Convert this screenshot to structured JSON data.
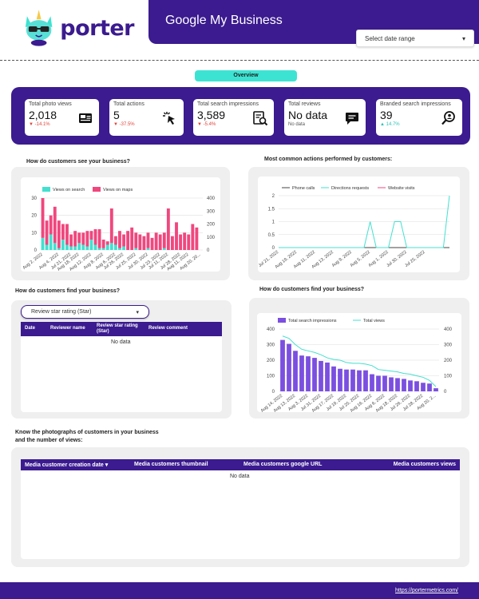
{
  "header": {
    "brand": "porter",
    "title": "Google My Business",
    "date_range_placeholder": "Select date range"
  },
  "overview_label": "Overview",
  "kpis": [
    {
      "label": "Total photo views",
      "value": "2,018",
      "delta": "-14.1%",
      "direction": "down",
      "icon": "photo-icon"
    },
    {
      "label": "Total actions",
      "value": "5",
      "delta": "-37.5%",
      "direction": "down",
      "icon": "cursor-click-icon"
    },
    {
      "label": "Total search impressions",
      "value": "3,589",
      "delta": "-5.4%",
      "direction": "down",
      "icon": "search-document-icon"
    },
    {
      "label": "Total reviews",
      "value": "No data",
      "delta": "No data",
      "direction": "none",
      "icon": "chat-bubble-icon"
    },
    {
      "label": "Branded search impressions",
      "value": "39",
      "delta": "14.7%",
      "direction": "up",
      "icon": "search-person-icon"
    }
  ],
  "colors": {
    "brand": "#3b1b8f",
    "accent": "#3de3d2",
    "negative": "#e0453a",
    "positive": "#2ec4b6",
    "views_on_search": "#43e0cf",
    "views_on_maps": "#f0477e",
    "phone_calls": "#444444",
    "directions_requests": "#43e0cf",
    "website_visits": "#f0477e",
    "impressions": "#7b4fe0"
  },
  "sections": {
    "see_title": "How do customers see your business?",
    "actions_title": "Most common actions performed by customers:",
    "find_title_left": "How do customers find your business?",
    "find_title_right": "How do customers find your business?",
    "photos_title_line1": "Know the photographs of customers in your business",
    "photos_title_line2": "and the number of views:"
  },
  "reviews": {
    "filter_label": "Review star rating (Star)",
    "columns": [
      "Date",
      "Reviewer name",
      "Review star rating (Star)",
      "Review comment"
    ],
    "empty": "No data"
  },
  "media": {
    "columns": [
      "Media customer creation date",
      "Media customers thumbnail",
      "Media customers google URL",
      "Media customers views"
    ],
    "empty": "No data"
  },
  "footer": {
    "link": "https://portermetrics.com/"
  },
  "chart_data": [
    {
      "type": "bar",
      "stacked": true,
      "legend_position": "top-left",
      "categories": [
        "Aug 2, 2022",
        "",
        "",
        "",
        "Aug 4, 2022",
        "",
        "",
        "Jul 21, 2022",
        "",
        "Aug 18, 2022",
        "",
        "",
        "Aug 12, 2022",
        "",
        "",
        "Aug 8, 2022",
        "",
        "",
        "Aug 6, 2022",
        "",
        "Jul 26, 2022",
        "",
        "",
        "Jul 25, 2022",
        "",
        "",
        "Jul 30, 2022",
        "",
        "",
        "Jul 23, 2022",
        "",
        "Jul 11, 2022",
        "",
        "",
        "Jul 28, 2022",
        "",
        "Aug 11, 2022",
        "",
        "",
        "Aug 20, 20..."
      ],
      "series": [
        {
          "name": "Views on search",
          "values": [
            7,
            3,
            9,
            4,
            1,
            6,
            3,
            2,
            2,
            4,
            3,
            2,
            6,
            3,
            1,
            1,
            3,
            4,
            3,
            1,
            2,
            0,
            0,
            1,
            0,
            0,
            1,
            0,
            0,
            0,
            1,
            0,
            0,
            0,
            0,
            0,
            0,
            0,
            0,
            0
          ]
        },
        {
          "name": "Views on maps",
          "values": [
            23,
            14,
            11,
            21,
            16,
            9,
            12,
            7,
            9,
            6,
            7,
            9,
            5,
            9,
            11,
            5,
            2,
            20,
            5,
            10,
            7,
            11,
            13,
            9,
            9,
            8,
            9,
            7,
            10,
            9,
            9,
            24,
            8,
            16,
            9,
            10,
            9,
            15,
            13,
            0
          ]
        }
      ],
      "ylim": [
        0,
        30
      ],
      "y2lim": [
        0,
        400
      ],
      "yticks": [
        0,
        10,
        20,
        30
      ],
      "y2ticks": [
        0,
        100,
        200,
        300,
        400
      ]
    },
    {
      "type": "line",
      "legend_position": "top",
      "categories": [
        "Jul 21, 2022",
        "",
        "",
        "Aug 19, 2022",
        "",
        "",
        "Aug 11, 2022",
        "",
        "",
        "Aug 13, 2022",
        "",
        "",
        "Aug 9, 2022",
        "",
        "",
        "Aug 5, 2022",
        "",
        "",
        "Aug 1, 2022",
        "",
        "",
        "Jul 30, 2022",
        "",
        "",
        "Jul 25, 2022",
        "",
        "",
        "",
        ""
      ],
      "series": [
        {
          "name": "Phone calls",
          "values": [
            0,
            0,
            0,
            0,
            0,
            0,
            0,
            0,
            0,
            0,
            0,
            0,
            0,
            0,
            0,
            0,
            0,
            0,
            0,
            0,
            0,
            0,
            0,
            0,
            0,
            0,
            0,
            0,
            0
          ]
        },
        {
          "name": "Directions requests",
          "values": [
            0,
            0,
            0,
            0,
            0,
            0,
            0,
            0,
            0,
            0,
            0,
            0,
            0,
            0,
            0,
            1,
            0,
            0,
            0,
            1,
            1,
            0,
            0,
            0,
            0,
            0,
            0,
            0,
            2
          ]
        },
        {
          "name": "Website visits",
          "values": [
            0,
            0,
            0,
            0,
            0,
            0,
            0,
            0,
            0,
            0,
            0,
            0,
            0,
            0,
            0,
            0,
            0,
            0,
            0,
            0,
            0,
            0,
            0,
            0,
            0,
            0,
            0,
            0,
            0
          ]
        }
      ],
      "ylim": [
        0,
        2
      ],
      "yticks": [
        0,
        0.5,
        1,
        1.5,
        2
      ]
    },
    {
      "type": "bar",
      "legend_position": "top-left",
      "categories": [
        "Aug 14, 2022",
        "",
        "Aug 13, 2022",
        "",
        "Aug 3, 2022",
        "",
        "Jul 31, 2022",
        "",
        "Aug 17, 2022",
        "",
        "Jul 19, 2022",
        "",
        "Jul 25, 2022",
        "",
        "Aug 16, 2022",
        "",
        "Aug 6, 2022",
        "",
        "Aug 18, 2022",
        "",
        "Jul 26, 2022",
        "",
        "Jul 28, 2022",
        "",
        "Aug 20, 2..."
      ],
      "series": [
        {
          "name": "Total search impressions",
          "type": "bar",
          "values": [
            330,
            305,
            260,
            230,
            225,
            215,
            195,
            185,
            160,
            145,
            140,
            140,
            135,
            135,
            110,
            100,
            100,
            90,
            85,
            80,
            70,
            65,
            55,
            50,
            20
          ]
        },
        {
          "name": "Total views",
          "type": "line",
          "axis": "right",
          "values": [
            355,
            340,
            300,
            270,
            260,
            250,
            235,
            215,
            205,
            200,
            185,
            180,
            180,
            175,
            165,
            140,
            135,
            130,
            125,
            115,
            110,
            100,
            90,
            70,
            30
          ]
        }
      ],
      "ylim": [
        0,
        400
      ],
      "y2lim": [
        0,
        400
      ],
      "yticks": [
        0,
        100,
        200,
        300,
        400
      ],
      "y2ticks": [
        0,
        100,
        200,
        300,
        400
      ]
    }
  ]
}
